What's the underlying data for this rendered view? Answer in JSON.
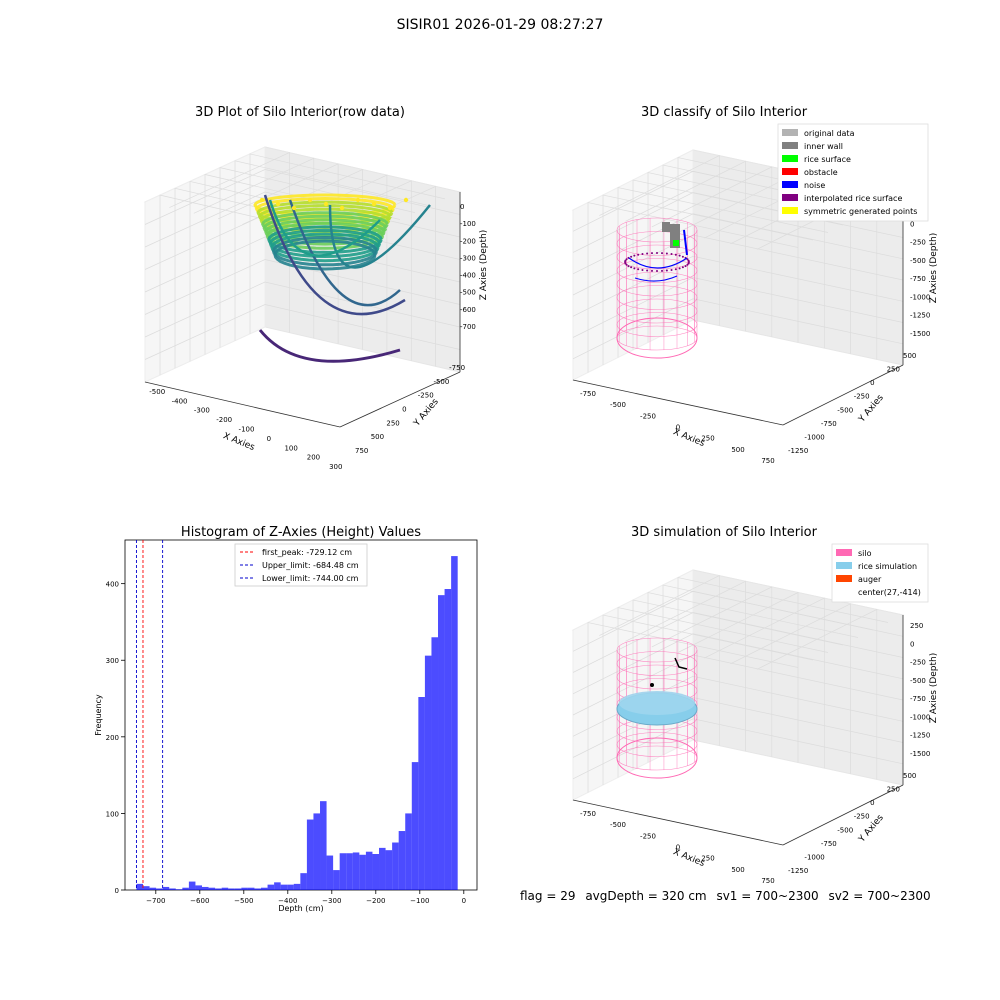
{
  "figure_title": "SISIR01 2026-01-29 08:27:27",
  "footer": {
    "flag": "flag = 29",
    "avg_depth": "avgDepth = 320 cm",
    "sv1": "sv1 = 700~2300",
    "sv2": "sv2 = 700~2300"
  },
  "chart_data": [
    {
      "type": "scatter",
      "projection": "3d",
      "title": "3D Plot of Silo Interior(row data)",
      "xlabel": "X Axies",
      "ylabel": "Y Axies",
      "zlabel": "Z Axies (Depth)",
      "x_ticks": [
        -500,
        -400,
        -300,
        -200,
        -100,
        0,
        100,
        200,
        300
      ],
      "y_ticks": [
        -750,
        -500,
        -250,
        0,
        250,
        500,
        750
      ],
      "z_ticks": [
        0,
        -100,
        -200,
        -300,
        -400,
        -500,
        -600,
        -700
      ],
      "colormap": "viridis",
      "grid": true
    },
    {
      "type": "scatter",
      "projection": "3d",
      "title": "3D classify of Silo Interior",
      "xlabel": "X Axies",
      "ylabel": "Y Axies",
      "zlabel": "Z Axies (Depth)",
      "x_ticks": [
        -750,
        -500,
        -250,
        0,
        250,
        500,
        750
      ],
      "y_ticks": [
        -1250,
        -1000,
        -750,
        -500,
        -250,
        0,
        250,
        500
      ],
      "z_ticks": [
        250,
        0,
        -250,
        -500,
        -750,
        -1000,
        -1250,
        -1500
      ],
      "legend_position": "top-right",
      "legend": [
        {
          "label": "original data",
          "color": "#b3b3b3"
        },
        {
          "label": "inner wall",
          "color": "#808080"
        },
        {
          "label": "rice surface",
          "color": "#00ff00"
        },
        {
          "label": "obstacle",
          "color": "#ff0000"
        },
        {
          "label": "noise",
          "color": "#0000ff"
        },
        {
          "label": "interpolated rice surface",
          "color": "#800080"
        },
        {
          "label": "symmetric generated points",
          "color": "#ffff00"
        }
      ],
      "grid": true
    },
    {
      "type": "bar",
      "title": "Histogram of Z-Axies (Height) Values",
      "xlabel": "Depth (cm)",
      "ylabel": "Frequency",
      "xlim": [
        -770,
        30
      ],
      "ylim": [
        0,
        457
      ],
      "x_ticks": [
        -700,
        -600,
        -500,
        -400,
        -300,
        -200,
        -100,
        0
      ],
      "y_ticks": [
        0,
        100,
        200,
        300,
        400
      ],
      "bin_width": 14.9,
      "bins_left": [
        -744.0,
        -729.1,
        -714.2,
        -699.3,
        -684.4,
        -669.5,
        -654.6,
        -639.7,
        -624.8,
        -609.9,
        -595.0,
        -580.1,
        -565.2,
        -550.3,
        -535.4,
        -520.5,
        -505.6,
        -490.7,
        -475.8,
        -460.9,
        -446.0,
        -431.1,
        -416.2,
        -401.3,
        -386.4,
        -371.5,
        -356.6,
        -341.7,
        -326.8,
        -311.9,
        -297.0,
        -282.1,
        -267.2,
        -252.3,
        -237.4,
        -222.5,
        -207.6,
        -192.7,
        -177.8,
        -162.9,
        -148.0,
        -133.1,
        -118.2,
        -103.3,
        -88.4,
        -73.5,
        -58.6,
        -43.7,
        -28.8,
        -13.9
      ],
      "values": [
        8,
        5,
        3,
        2,
        4,
        2,
        1,
        3,
        11,
        6,
        4,
        3,
        2,
        3,
        2,
        2,
        3,
        3,
        2,
        3,
        7,
        10,
        7,
        7,
        8,
        22,
        92,
        100,
        116,
        45,
        26,
        48,
        48,
        49,
        46,
        50,
        47,
        55,
        52,
        62,
        77,
        100,
        167,
        252,
        306,
        330,
        385,
        393,
        436,
        0
      ],
      "color": "#0000ff",
      "vlines": [
        {
          "label": "first_peak: -729.12 cm",
          "x": -729.12,
          "color": "#ff0000"
        },
        {
          "label": "Upper_limit: -684.48 cm",
          "x": -684.48,
          "color": "#0000cc"
        },
        {
          "label": "Lower_limit: -744.00 cm",
          "x": -744.0,
          "color": "#0000cc"
        }
      ],
      "legend_position": "top-center",
      "grid": false
    },
    {
      "type": "scatter",
      "projection": "3d",
      "title": "3D simulation of Silo Interior",
      "xlabel": "X Axies",
      "ylabel": "Y Axies",
      "zlabel": "Z Axies (Depth)",
      "x_ticks": [
        -750,
        -500,
        -250,
        0,
        250,
        500,
        750
      ],
      "y_ticks": [
        -1250,
        -1000,
        -750,
        -500,
        -250,
        0,
        250,
        500
      ],
      "z_ticks": [
        250,
        0,
        -250,
        -500,
        -750,
        -1000,
        -1250,
        -1500
      ],
      "legend_position": "top-right",
      "legend": [
        {
          "label": "silo",
          "color": "#ff69b4"
        },
        {
          "label": "rice simulation",
          "color": "#87ceeb"
        },
        {
          "label": "auger",
          "color": "#ff4500"
        },
        {
          "label": "center(27,-414)",
          "color": ""
        }
      ],
      "grid": true
    }
  ]
}
